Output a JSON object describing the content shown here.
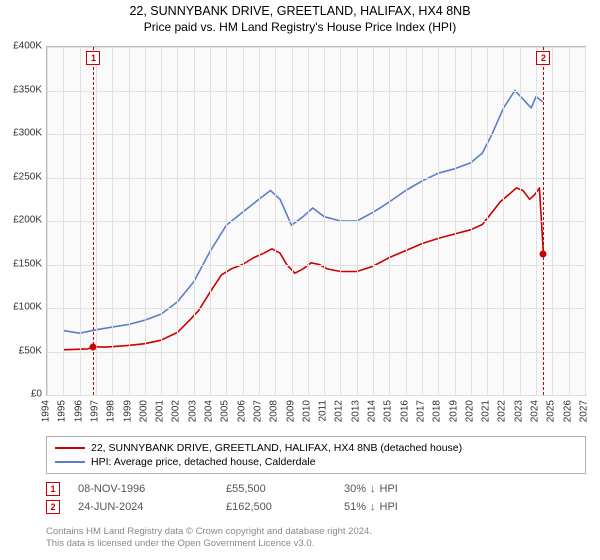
{
  "title": "22, SUNNYBANK DRIVE, GREETLAND, HALIFAX, HX4 8NB",
  "subtitle": "Price paid vs. HM Land Registry's House Price Index (HPI)",
  "chart": {
    "type": "line",
    "background_color": "#fafafa",
    "border_color": "#bdbdbd",
    "grid_color": "#e0e0e0",
    "x": {
      "min": 1994,
      "max": 2027,
      "step": 1,
      "labels": [
        "1994",
        "1995",
        "1996",
        "1997",
        "1998",
        "1999",
        "2000",
        "2001",
        "2002",
        "2003",
        "2004",
        "2005",
        "2006",
        "2007",
        "2008",
        "2009",
        "2010",
        "2011",
        "2012",
        "2013",
        "2014",
        "2015",
        "2016",
        "2017",
        "2018",
        "2019",
        "2020",
        "2021",
        "2022",
        "2023",
        "2024",
        "2025",
        "2026",
        "2027"
      ]
    },
    "y": {
      "min": 0,
      "max": 400000,
      "step": 50000,
      "labels": [
        "£0",
        "£50K",
        "£100K",
        "£150K",
        "£200K",
        "£250K",
        "£300K",
        "£350K",
        "£400K"
      ]
    },
    "series": [
      {
        "id": "price_paid",
        "color": "#cc0000",
        "width": 1.6,
        "points": [
          [
            1995.0,
            52000
          ],
          [
            1996.5,
            53000
          ],
          [
            1996.85,
            55500
          ],
          [
            1997.5,
            55000
          ],
          [
            1998.0,
            55500
          ],
          [
            1999.0,
            57000
          ],
          [
            2000.0,
            59000
          ],
          [
            2001.0,
            63000
          ],
          [
            2002.0,
            72000
          ],
          [
            2002.7,
            85000
          ],
          [
            2003.3,
            97000
          ],
          [
            2004.0,
            118000
          ],
          [
            2004.7,
            138000
          ],
          [
            2005.3,
            145000
          ],
          [
            2006.0,
            150000
          ],
          [
            2006.7,
            158000
          ],
          [
            2007.3,
            163000
          ],
          [
            2007.8,
            168000
          ],
          [
            2008.3,
            163000
          ],
          [
            2008.7,
            150000
          ],
          [
            2009.2,
            140000
          ],
          [
            2009.7,
            145000
          ],
          [
            2010.2,
            152000
          ],
          [
            2010.7,
            150000
          ],
          [
            2011.2,
            145000
          ],
          [
            2012.0,
            142000
          ],
          [
            2013.0,
            142000
          ],
          [
            2014.0,
            148000
          ],
          [
            2015.0,
            158000
          ],
          [
            2016.0,
            166000
          ],
          [
            2017.0,
            174000
          ],
          [
            2018.0,
            180000
          ],
          [
            2019.0,
            185000
          ],
          [
            2020.0,
            190000
          ],
          [
            2020.7,
            196000
          ],
          [
            2021.3,
            210000
          ],
          [
            2021.8,
            222000
          ],
          [
            2022.3,
            230000
          ],
          [
            2022.8,
            238000
          ],
          [
            2023.2,
            235000
          ],
          [
            2023.6,
            225000
          ],
          [
            2023.9,
            230000
          ],
          [
            2024.2,
            238000
          ],
          [
            2024.45,
            162500
          ]
        ]
      },
      {
        "id": "hpi",
        "color": "#5b7fc7",
        "width": 1.6,
        "points": [
          [
            1995.0,
            74000
          ],
          [
            1996.0,
            71000
          ],
          [
            1997.0,
            75000
          ],
          [
            1998.0,
            78000
          ],
          [
            1999.0,
            81000
          ],
          [
            2000.0,
            86000
          ],
          [
            2001.0,
            93000
          ],
          [
            2002.0,
            107000
          ],
          [
            2003.0,
            130000
          ],
          [
            2004.0,
            165000
          ],
          [
            2005.0,
            195000
          ],
          [
            2006.0,
            210000
          ],
          [
            2007.0,
            225000
          ],
          [
            2007.7,
            235000
          ],
          [
            2008.3,
            225000
          ],
          [
            2009.0,
            195000
          ],
          [
            2009.7,
            205000
          ],
          [
            2010.3,
            215000
          ],
          [
            2011.0,
            205000
          ],
          [
            2012.0,
            200000
          ],
          [
            2013.0,
            200000
          ],
          [
            2014.0,
            210000
          ],
          [
            2015.0,
            222000
          ],
          [
            2016.0,
            235000
          ],
          [
            2017.0,
            246000
          ],
          [
            2018.0,
            255000
          ],
          [
            2019.0,
            260000
          ],
          [
            2020.0,
            267000
          ],
          [
            2020.7,
            278000
          ],
          [
            2021.3,
            300000
          ],
          [
            2022.0,
            330000
          ],
          [
            2022.7,
            350000
          ],
          [
            2023.2,
            340000
          ],
          [
            2023.7,
            330000
          ],
          [
            2024.0,
            343000
          ],
          [
            2024.4,
            337000
          ]
        ]
      }
    ],
    "markers": [
      {
        "id": "1",
        "x": 1996.85,
        "y": 55500,
        "label_y_top": true
      },
      {
        "id": "2",
        "x": 2024.45,
        "y": 162500,
        "label_y_top": true
      }
    ]
  },
  "legend": {
    "items": [
      {
        "color": "#cc0000",
        "label": "22, SUNNYBANK DRIVE, GREETLAND, HALIFAX, HX4 8NB (detached house)"
      },
      {
        "color": "#5b7fc7",
        "label": "HPI: Average price, detached house, Calderdale"
      }
    ]
  },
  "transactions": [
    {
      "id": "1",
      "date": "08-NOV-1996",
      "price": "£55,500",
      "diff_pct": "30%",
      "diff_dir": "down",
      "diff_ref": "HPI"
    },
    {
      "id": "2",
      "date": "24-JUN-2024",
      "price": "£162,500",
      "diff_pct": "51%",
      "diff_dir": "down",
      "diff_ref": "HPI"
    }
  ],
  "footer": {
    "l1": "Contains HM Land Registry data © Crown copyright and database right 2024.",
    "l2": "This data is licensed under the Open Government Licence v3.0."
  },
  "colors": {
    "marker_border": "#cc0000",
    "text_muted": "#888888"
  }
}
